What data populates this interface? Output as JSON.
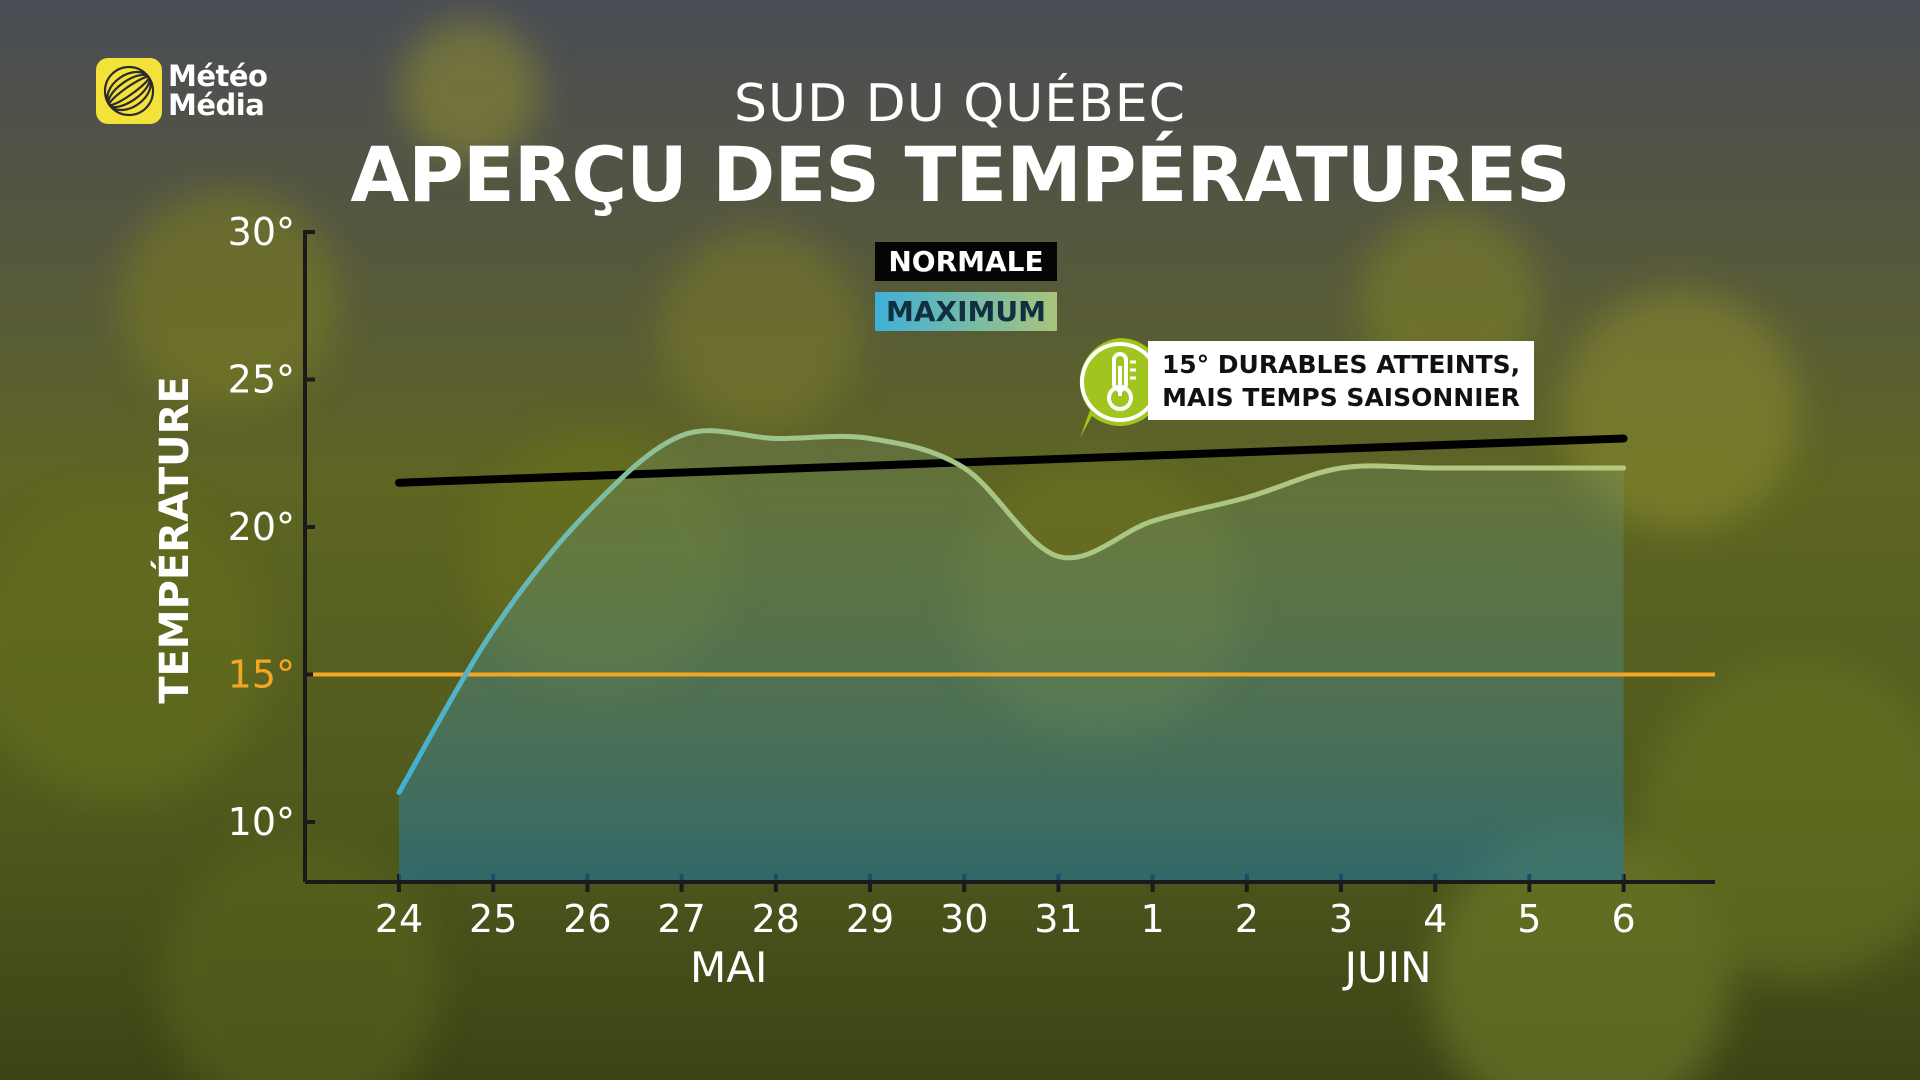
{
  "brand": {
    "line1": "Météo",
    "line2": "Média"
  },
  "subtitle": "SUD DU QUÉBEC",
  "title": "APERÇU DES TEMPÉRATURES",
  "legend": {
    "normal": "NORMALE",
    "maximum": "MAXIMUM"
  },
  "callout": {
    "line1": "15° DURABLES ATTEINTS,",
    "line2": "MAIS TEMPS SAISONNIER",
    "icon": "thermometer-icon"
  },
  "colors": {
    "normal": "#000000",
    "threshold": "#f5a623",
    "max_start": "#3fb0d8",
    "max_end": "#b9c97e"
  },
  "chart_data": {
    "type": "line",
    "title": "APERÇU DES TEMPÉRATURES",
    "ylabel": "TEMPÉRATURE",
    "xlabel": "",
    "x": [
      "24",
      "25",
      "26",
      "27",
      "28",
      "29",
      "30",
      "31",
      "1",
      "2",
      "3",
      "4",
      "5",
      "6"
    ],
    "month_labels": [
      {
        "label": "MAI",
        "x_index": 3.5
      },
      {
        "label": "JUIN",
        "x_index": 10.5
      }
    ],
    "ylim": [
      8,
      30
    ],
    "yticks": [
      {
        "value": 30,
        "label": "30°"
      },
      {
        "value": 25,
        "label": "25°"
      },
      {
        "value": 20,
        "label": "20°"
      },
      {
        "value": 15,
        "label": "15°"
      },
      {
        "value": 10,
        "label": "10°"
      }
    ],
    "series": [
      {
        "name": "NORMALE",
        "values": [
          21.5,
          21.6,
          21.7,
          21.8,
          21.9,
          22.0,
          22.1,
          22.2,
          22.3,
          22.5,
          22.6,
          22.7,
          22.9,
          23.0
        ]
      },
      {
        "name": "MAXIMUM",
        "values": [
          11.0,
          16.5,
          20.5,
          23.1,
          23.0,
          23.0,
          22.0,
          19.0,
          20.2,
          21.0,
          22.0,
          22.0,
          22.0,
          22.0
        ]
      }
    ],
    "threshold": {
      "value": 15,
      "label": "15°"
    },
    "grid": false,
    "legend_position": "top-center"
  }
}
